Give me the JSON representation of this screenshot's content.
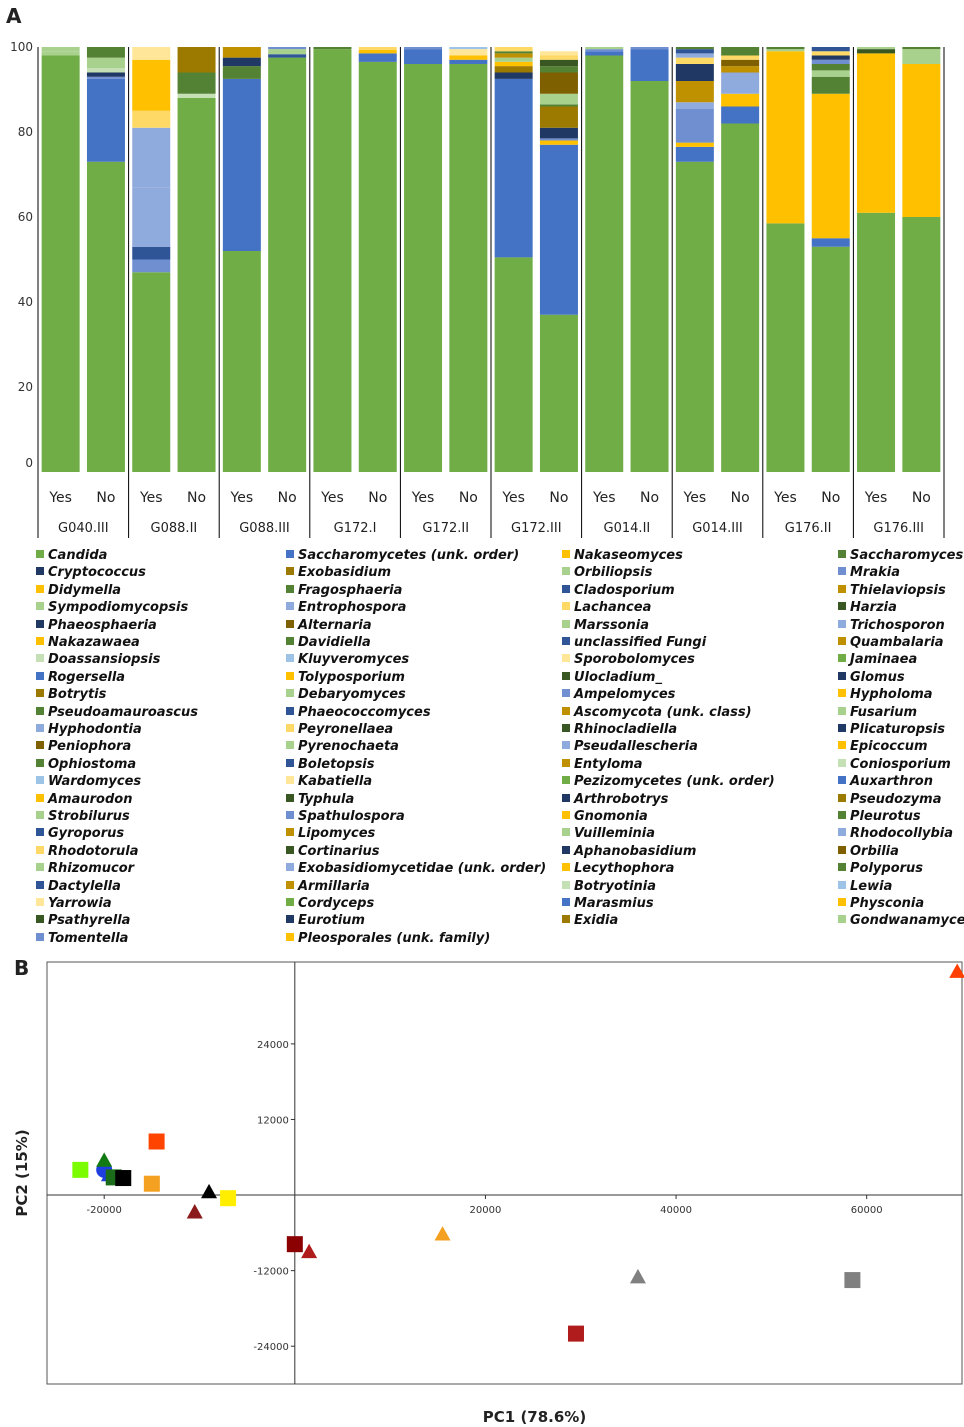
{
  "panels": {
    "a_letter": "A",
    "b_letter": "B"
  },
  "chart_data": [
    {
      "type": "bar",
      "stacked": true,
      "ylim": [
        0,
        100
      ],
      "yticks": [
        0,
        20,
        40,
        60,
        80,
        100
      ],
      "groups": [
        "G040.III",
        "G088.II",
        "G088.III",
        "G172.I",
        "G172.II",
        "G172.III",
        "G014.II",
        "G014.III",
        "G176.II",
        "G176.III"
      ],
      "bar_labels": [
        "Yes",
        "No"
      ],
      "colors": {
        "Candida": "#70ad47",
        "Saccharomycetes (unk. order)": "#4472c4",
        "Nakaseomyces": "#ffc000",
        "Saccharomyces": "#548235",
        "Cryptococcus": "#203864",
        "Exobasidium": "#9c7a00",
        "Orbiliopsis": "#a9d18e",
        "Mrakia": "#6f8fd0",
        "Didymella": "#ffc000",
        "Fragosphaeria": "#548235",
        "Cladosporium": "#2f5597",
        "Thielaviopsis": "#bf9000",
        "Sympodiomycopsis": "#a9d18e",
        "Entrophospora": "#8faadc",
        "Lachancea": "#ffd966",
        "Harzia": "#385723",
        "Phaeosphaeria": "#203864",
        "Alternaria": "#7f6000",
        "Marssonia": "#a9d18e",
        "Trichosporon": "#8faadc",
        "Nakazawaea": "#ffc000",
        "Davidiella": "#548235",
        "unclassified Fungi": "#2f5597",
        "Quambalaria": "#bf9000",
        "Doassansiopsis": "#c5e0b4",
        "Kluyveromyces": "#9dc3e6",
        "Sporobolomyces": "#ffe699",
        "Jaminaea": "#70ad47",
        "Rogersella": "#4472c4",
        "Tolyposporium": "#ffc000",
        "Ulocladium_": "#385723",
        "Glomus": "#203864",
        "Botrytis": "#9c7a00",
        "Debaryomyces": "#a9d18e",
        "Ampelomyces": "#6f8fd0",
        "Hypholoma": "#ffc000",
        "Pseudoamauroascus": "#548235",
        "Phaeococcomyces": "#2f5597",
        "Ascomycota (unk. class)": "#bf9000",
        "Fusarium": "#a9d18e",
        "Hyphodontia": "#8faadc",
        "Peyronellaea": "#ffd966",
        "Rhinocladiella": "#385723",
        "Plicaturopsis": "#203864",
        "Peniophora": "#7f6000",
        "Pyrenochaeta": "#a9d18e",
        "Pseudallescheria": "#8faadc",
        "Epicoccum": "#ffc000",
        "Ophiostoma": "#548235",
        "Boletopsis": "#2f5597",
        "Entyloma": "#bf9000",
        "Coniosporium": "#c5e0b4",
        "Wardomyces": "#9dc3e6",
        "Kabatiella": "#ffe699",
        "Pezizomycetes (unk. order)": "#70ad47",
        "Auxarthron": "#4472c4",
        "Amaurodon": "#ffc000",
        "Typhula": "#385723",
        "Arthrobotrys": "#203864",
        "Pseudozyma": "#9c7a00",
        "Strobilurus": "#a9d18e",
        "Spathulospora": "#6f8fd0",
        "Gnomonia": "#ffc000",
        "Pleurotus": "#548235",
        "Gyroporus": "#2f5597",
        "Lipomyces": "#bf9000",
        "Vuilleminia": "#a9d18e",
        "Rhodocollybia": "#8faadc",
        "Rhodotorula": "#ffd966",
        "Cortinarius": "#385723",
        "Aphanobasidium": "#203864",
        "Orbilia": "#7f6000",
        "Rhizomucor": "#a9d18e",
        "Exobasidiomycetidae (unk. order)": "#8faadc",
        "Lecythophora": "#ffc000",
        "Polyporus": "#548235",
        "Dactylella": "#2f5597",
        "Armillaria": "#bf9000",
        "Botryotinia": "#c5e0b4",
        "Lewia": "#9dc3e6",
        "Yarrowia": "#ffe699",
        "Cordyceps": "#70ad47",
        "Marasmius": "#4472c4",
        "Physconia": "#ffc000",
        "Psathyrella": "#385723",
        "Eurotium": "#203864",
        "Exidia": "#9c7a00",
        "Gondwanamyces": "#a9d18e",
        "Tomentella": "#6f8fd0",
        "Pleosporales (unk. family)": "#ffc000"
      },
      "bars": [
        {
          "group": "G040.III",
          "label": "Yes",
          "segments": [
            {
              "genus": "Candida",
              "value": 98
            },
            {
              "genus": "Orbiliopsis",
              "value": 1
            },
            {
              "genus": "Sympodiomycopsis",
              "value": 1
            }
          ]
        },
        {
          "group": "G040.III",
          "label": "No",
          "segments": [
            {
              "genus": "Candida",
              "value": 73
            },
            {
              "genus": "Saccharomycetes (unk. order)",
              "value": 19.5
            },
            {
              "genus": "Mrakia",
              "value": 0.5
            },
            {
              "genus": "Cryptococcus",
              "value": 1
            },
            {
              "genus": "Doassansiopsis",
              "value": 1
            },
            {
              "genus": "Orbiliopsis",
              "value": 2.5
            },
            {
              "genus": "Saccharomyces",
              "value": 2.5
            }
          ]
        },
        {
          "group": "G088.II",
          "label": "Yes",
          "segments": [
            {
              "genus": "Candida",
              "value": 47
            },
            {
              "genus": "Mrakia",
              "value": 3
            },
            {
              "genus": "Cladosporium",
              "value": 3
            },
            {
              "genus": "Entrophospora",
              "value": 14
            },
            {
              "genus": "Trichosporon",
              "value": 14
            },
            {
              "genus": "Lachancea",
              "value": 4
            },
            {
              "genus": "Didymella",
              "value": 12
            },
            {
              "genus": "Sporobolomyces",
              "value": 3
            }
          ]
        },
        {
          "group": "G088.II",
          "label": "No",
          "segments": [
            {
              "genus": "Candida",
              "value": 88
            },
            {
              "genus": "Doassansiopsis",
              "value": 1
            },
            {
              "genus": "Fragosphaeria",
              "value": 5
            },
            {
              "genus": "Exobasidium",
              "value": 6
            }
          ]
        },
        {
          "group": "G088.III",
          "label": "Yes",
          "segments": [
            {
              "genus": "Candida",
              "value": 52
            },
            {
              "genus": "Saccharomycetes (unk. order)",
              "value": 40.5
            },
            {
              "genus": "Saccharomyces",
              "value": 3
            },
            {
              "genus": "Cryptococcus",
              "value": 2
            },
            {
              "genus": "Thielaviopsis",
              "value": 2.5
            }
          ]
        },
        {
          "group": "G088.III",
          "label": "No",
          "segments": [
            {
              "genus": "Candida",
              "value": 97.5
            },
            {
              "genus": "Cladosporium",
              "value": 0.8
            },
            {
              "genus": "Orbiliopsis",
              "value": 1.2
            },
            {
              "genus": "Mrakia",
              "value": 0.5
            }
          ]
        },
        {
          "group": "G172.I",
          "label": "Yes",
          "segments": [
            {
              "genus": "Candida",
              "value": 99.5
            },
            {
              "genus": "Saccharomyces",
              "value": 0.5
            }
          ]
        },
        {
          "group": "G172.I",
          "label": "No",
          "segments": [
            {
              "genus": "Candida",
              "value": 96.5
            },
            {
              "genus": "Saccharomycetes (unk. order)",
              "value": 2
            },
            {
              "genus": "Nakaseomyces",
              "value": 0.8
            },
            {
              "genus": "Lachancea",
              "value": 0.7
            }
          ]
        },
        {
          "group": "G172.II",
          "label": "Yes",
          "segments": [
            {
              "genus": "Candida",
              "value": 96
            },
            {
              "genus": "Saccharomycetes (unk. order)",
              "value": 3.5
            },
            {
              "genus": "Mrakia",
              "value": 0.5
            }
          ]
        },
        {
          "group": "G172.II",
          "label": "No",
          "segments": [
            {
              "genus": "Candida",
              "value": 96
            },
            {
              "genus": "Saccharomycetes (unk. order)",
              "value": 1
            },
            {
              "genus": "Nakaseomyces",
              "value": 1
            },
            {
              "genus": "Sporobolomyces",
              "value": 1.5
            },
            {
              "genus": "Kluyveromyces",
              "value": 0.5
            }
          ]
        },
        {
          "group": "G172.III",
          "label": "Yes",
          "segments": [
            {
              "genus": "Candida",
              "value": 50.5
            },
            {
              "genus": "Saccharomycetes (unk. order)",
              "value": 42
            },
            {
              "genus": "Cryptococcus",
              "value": 1.5
            },
            {
              "genus": "Exobasidium",
              "value": 1.5
            },
            {
              "genus": "Didymella",
              "value": 1
            },
            {
              "genus": "Orbiliopsis",
              "value": 1
            },
            {
              "genus": "Thielaviopsis",
              "value": 1
            },
            {
              "genus": "Saccharomyces",
              "value": 0.5
            },
            {
              "genus": "Lachancea",
              "value": 1
            }
          ]
        },
        {
          "group": "G172.III",
          "label": "No",
          "segments": [
            {
              "genus": "Candida",
              "value": 37
            },
            {
              "genus": "Saccharomycetes (unk. order)",
              "value": 40
            },
            {
              "genus": "Nakaseomyces",
              "value": 1
            },
            {
              "genus": "Mrakia",
              "value": 0.5
            },
            {
              "genus": "Cryptococcus",
              "value": 2.5
            },
            {
              "genus": "Exobasidium",
              "value": 5
            },
            {
              "genus": "Saccharomyces",
              "value": 0.5
            },
            {
              "genus": "Orbiliopsis",
              "value": 2.5
            },
            {
              "genus": "Alternaria",
              "value": 5
            },
            {
              "genus": "Fragosphaeria",
              "value": 1.5
            },
            {
              "genus": "Ulocladium_",
              "value": 1.5
            },
            {
              "genus": "Lachancea",
              "value": 1
            },
            {
              "genus": "Sporobolomyces",
              "value": 1
            }
          ]
        },
        {
          "group": "G014.II",
          "label": "Yes",
          "segments": [
            {
              "genus": "Candida",
              "value": 98
            },
            {
              "genus": "Saccharomycetes (unk. order)",
              "value": 1
            },
            {
              "genus": "Mrakia",
              "value": 0.5
            },
            {
              "genus": "Orbiliopsis",
              "value": 0.5
            }
          ]
        },
        {
          "group": "G014.II",
          "label": "No",
          "segments": [
            {
              "genus": "Candida",
              "value": 92
            },
            {
              "genus": "Saccharomycetes (unk. order)",
              "value": 7.5
            },
            {
              "genus": "Mrakia",
              "value": 0.5
            }
          ]
        },
        {
          "group": "G014.III",
          "label": "Yes",
          "segments": [
            {
              "genus": "Candida",
              "value": 73
            },
            {
              "genus": "Saccharomycetes (unk. order)",
              "value": 3.5
            },
            {
              "genus": "Didymella",
              "value": 1
            },
            {
              "genus": "Mrakia",
              "value": 8
            },
            {
              "genus": "Trichosporon",
              "value": 1.5
            },
            {
              "genus": "Thielaviopsis",
              "value": 5
            },
            {
              "genus": "Cryptococcus",
              "value": 4
            },
            {
              "genus": "Lachancea",
              "value": 1.5
            },
            {
              "genus": "Entrophospora",
              "value": 1
            },
            {
              "genus": "Cladosporium",
              "value": 1
            },
            {
              "genus": "Saccharomyces",
              "value": 0.5
            }
          ]
        },
        {
          "group": "G014.III",
          "label": "No",
          "segments": [
            {
              "genus": "Candida",
              "value": 82
            },
            {
              "genus": "Saccharomycetes (unk. order)",
              "value": 4
            },
            {
              "genus": "Nakaseomyces",
              "value": 3
            },
            {
              "genus": "Entrophospora",
              "value": 5
            },
            {
              "genus": "Thielaviopsis",
              "value": 1.5
            },
            {
              "genus": "Alternaria",
              "value": 1.5
            },
            {
              "genus": "Lachancea",
              "value": 1
            },
            {
              "genus": "Saccharomyces",
              "value": 2
            }
          ]
        },
        {
          "group": "G176.II",
          "label": "Yes",
          "segments": [
            {
              "genus": "Candida",
              "value": 58.5
            },
            {
              "genus": "Nakaseomyces",
              "value": 40.5
            },
            {
              "genus": "Orbiliopsis",
              "value": 0.5
            },
            {
              "genus": "Saccharomyces",
              "value": 0.5
            }
          ]
        },
        {
          "group": "G176.II",
          "label": "No",
          "segments": [
            {
              "genus": "Candida",
              "value": 53
            },
            {
              "genus": "Saccharomycetes (unk. order)",
              "value": 2
            },
            {
              "genus": "Nakaseomyces",
              "value": 34
            },
            {
              "genus": "Saccharomyces",
              "value": 4
            },
            {
              "genus": "Orbiliopsis",
              "value": 1.5
            },
            {
              "genus": "Fragosphaeria",
              "value": 1.5
            },
            {
              "genus": "Mrakia",
              "value": 1
            },
            {
              "genus": "Cryptococcus",
              "value": 1
            },
            {
              "genus": "Lachancea",
              "value": 1
            },
            {
              "genus": "Cladosporium",
              "value": 1
            }
          ]
        },
        {
          "group": "G176.III",
          "label": "Yes",
          "segments": [
            {
              "genus": "Candida",
              "value": 61
            },
            {
              "genus": "Nakaseomyces",
              "value": 37.5
            },
            {
              "genus": "Harzia",
              "value": 1
            },
            {
              "genus": "Orbiliopsis",
              "value": 0.5
            }
          ]
        },
        {
          "group": "G176.III",
          "label": "No",
          "segments": [
            {
              "genus": "Candida",
              "value": 60
            },
            {
              "genus": "Nakaseomyces",
              "value": 36
            },
            {
              "genus": "Orbiliopsis",
              "value": 3.5
            },
            {
              "genus": "Saccharomyces",
              "value": 0.5
            }
          ]
        }
      ]
    },
    {
      "type": "scatter",
      "xlabel": "PC1 (78.6%)",
      "ylabel": "PC2 (15%)",
      "xlim": [
        -26000,
        70000
      ],
      "ylim": [
        -30000,
        37000
      ],
      "xticks": [
        -20000,
        20000,
        40000,
        60000
      ],
      "yticks": [
        24000,
        12000,
        -12000,
        -24000
      ],
      "points": [
        {
          "x": 69500,
          "y": 35500,
          "shape": "triangle",
          "color": "#ff4000"
        },
        {
          "x": -14500,
          "y": 8500,
          "shape": "square",
          "color": "#ff4400"
        },
        {
          "x": -22500,
          "y": 4000,
          "shape": "square",
          "color": "#7cfc00"
        },
        {
          "x": -20000,
          "y": 4000,
          "shape": "circle",
          "color": "#1f3ee0"
        },
        {
          "x": -19500,
          "y": 3200,
          "shape": "triangle",
          "color": "#1f3ee0"
        },
        {
          "x": -20000,
          "y": 5500,
          "shape": "triangle",
          "color": "#137a13"
        },
        {
          "x": -19000,
          "y": 2800,
          "shape": "square",
          "color": "#1a6b1a"
        },
        {
          "x": -18000,
          "y": 2700,
          "shape": "square",
          "color": "#000000"
        },
        {
          "x": -15000,
          "y": 1800,
          "shape": "square",
          "color": "#f4a020"
        },
        {
          "x": -9000,
          "y": 500,
          "shape": "triangle",
          "color": "#000000"
        },
        {
          "x": -7000,
          "y": -500,
          "shape": "square",
          "color": "#ffee00"
        },
        {
          "x": -10500,
          "y": -2700,
          "shape": "triangle",
          "color": "#8b1a1a"
        },
        {
          "x": 0,
          "y": -7800,
          "shape": "square",
          "color": "#8b0000"
        },
        {
          "x": 1500,
          "y": -9000,
          "shape": "triangle",
          "color": "#b01c1c"
        },
        {
          "x": 15500,
          "y": -6200,
          "shape": "triangle",
          "color": "#f4a020"
        },
        {
          "x": 29500,
          "y": -22000,
          "shape": "square",
          "color": "#b01c1c"
        },
        {
          "x": 36000,
          "y": -13000,
          "shape": "triangle",
          "color": "#808080"
        },
        {
          "x": 58500,
          "y": -13500,
          "shape": "square",
          "color": "#808080"
        }
      ]
    }
  ]
}
